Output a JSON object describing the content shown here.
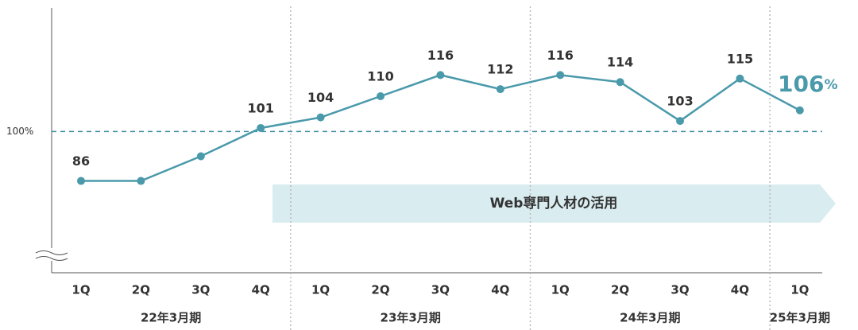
{
  "chart_data": {
    "type": "line",
    "categories": [
      "1Q",
      "2Q",
      "3Q",
      "4Q",
      "1Q",
      "2Q",
      "3Q",
      "4Q",
      "1Q",
      "2Q",
      "3Q",
      "4Q",
      "1Q"
    ],
    "periods": [
      "22年3月期",
      null,
      null,
      null,
      "23年3月期",
      null,
      null,
      null,
      "24年3月期",
      null,
      null,
      null,
      "25年3月期"
    ],
    "values": [
      86,
      86,
      93,
      101,
      104,
      110,
      116,
      112,
      116,
      114,
      103,
      115,
      106
    ],
    "value_labels": [
      "86",
      null,
      null,
      "101",
      "104",
      "110",
      "116",
      "112",
      "116",
      "114",
      "103",
      "115",
      "106%"
    ],
    "color": "#4a9aab",
    "ylim": [
      60,
      135
    ],
    "yticks": [
      {
        "value": 100,
        "label": "100%"
      }
    ],
    "annotation": "Web専門人材の活用"
  }
}
